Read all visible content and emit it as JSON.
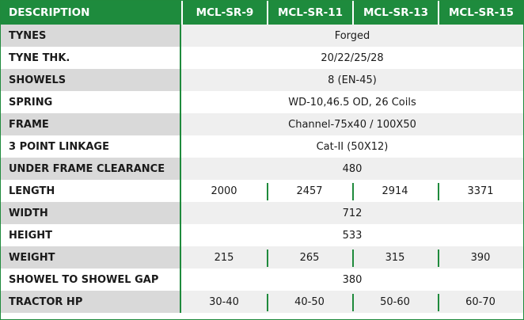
{
  "table": {
    "header": {
      "label": "DESCRIPTION",
      "models": [
        "MCL-SR-9",
        "MCL-SR-11",
        "MCL-SR-13",
        "MCL-SR-15"
      ]
    },
    "rows": [
      {
        "label": "TYNES",
        "value": "Forged"
      },
      {
        "label": "TYNE THK.",
        "value": "20/22/25/28"
      },
      {
        "label": "SHOWELS",
        "value": "8 (EN-45)"
      },
      {
        "label": "SPRING",
        "value": "WD-10,46.5 OD, 26 Coils"
      },
      {
        "label": "FRAME",
        "value": "Channel-75x40 / 100X50"
      },
      {
        "label": "3 POINT LINKAGE",
        "value": "Cat-II (50X12)"
      },
      {
        "label": "UNDER FRAME CLEARANCE",
        "value": "480"
      },
      {
        "label": "LENGTH",
        "values": [
          "2000",
          "2457",
          "2914",
          "3371"
        ]
      },
      {
        "label": "WIDTH",
        "value": "712"
      },
      {
        "label": "HEIGHT",
        "value": "533"
      },
      {
        "label": "WEIGHT",
        "values": [
          "215",
          "265",
          "315",
          "390"
        ]
      },
      {
        "label": "SHOWEL TO SHOWEL GAP",
        "value": "380"
      },
      {
        "label": "TRACTOR HP",
        "values": [
          "30-40",
          "40-50",
          "50-60",
          "60-70"
        ]
      }
    ]
  },
  "colors": {
    "header_bg": "#1e8b3d",
    "border": "#1f8a3c",
    "shade_label": "#d9d9d9",
    "shade_value": "#efefef"
  }
}
